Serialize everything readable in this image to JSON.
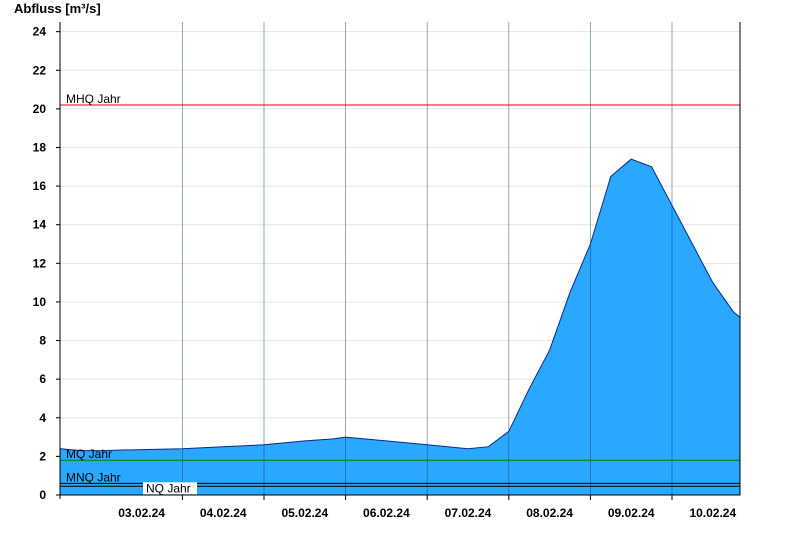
{
  "chart_data": {
    "type": "area",
    "title": "",
    "ylabel": "Abfluss [m³/s]",
    "xlabel": "",
    "ylim": [
      0,
      24.5
    ],
    "yticks": [
      0,
      2,
      4,
      6,
      8,
      10,
      12,
      14,
      16,
      18,
      20,
      22,
      24
    ],
    "xlim": [
      "2024-02-02T12:00",
      "2024-02-10T20:00"
    ],
    "day_labels": [
      {
        "date": "2024-02-03T12:00",
        "label": "03.02.24"
      },
      {
        "date": "2024-02-04T12:00",
        "label": "04.02.24"
      },
      {
        "date": "2024-02-05T12:00",
        "label": "05.02.24"
      },
      {
        "date": "2024-02-06T12:00",
        "label": "06.02.24"
      },
      {
        "date": "2024-02-07T12:00",
        "label": "07.02.24"
      },
      {
        "date": "2024-02-08T12:00",
        "label": "08.02.24"
      },
      {
        "date": "2024-02-09T12:00",
        "label": "09.02.24"
      },
      {
        "date": "2024-02-10T12:00",
        "label": "10.02.24"
      }
    ],
    "day_lines": [
      "2024-02-04T00:00",
      "2024-02-05T00:00",
      "2024-02-06T00:00",
      "2024-02-07T00:00",
      "2024-02-08T00:00",
      "2024-02-09T00:00",
      "2024-02-10T00:00"
    ],
    "grid": true,
    "reference_lines": [
      {
        "name": "MHQ Jahr",
        "value": 20.2,
        "color": "#e00000"
      },
      {
        "name": "MQ Jahr",
        "value": 1.8,
        "color": "#008000"
      },
      {
        "name": "MNQ Jahr",
        "value": 0.6,
        "color": "#000000"
      },
      {
        "name": "NQ Jahr",
        "value": 0.45,
        "color": "#000000"
      }
    ],
    "area_color": "#2aa8ff",
    "series": [
      {
        "x": [
          "2024-02-02T12:00",
          "2024-02-02T18:00",
          "2024-02-03T00:00",
          "2024-02-03T12:00",
          "2024-02-04T00:00",
          "2024-02-04T12:00",
          "2024-02-05T00:00",
          "2024-02-05T12:00",
          "2024-02-05T20:00",
          "2024-02-06T00:00",
          "2024-02-06T12:00",
          "2024-02-07T00:00",
          "2024-02-07T06:00",
          "2024-02-07T12:00",
          "2024-02-07T18:00",
          "2024-02-08T00:00",
          "2024-02-08T06:00",
          "2024-02-08T12:00",
          "2024-02-08T18:00",
          "2024-02-09T00:00",
          "2024-02-09T06:00",
          "2024-02-09T12:00",
          "2024-02-09T18:00",
          "2024-02-10T00:00",
          "2024-02-10T06:00",
          "2024-02-10T12:00",
          "2024-02-10T18:00",
          "2024-02-10T20:00"
        ],
        "y": [
          2.4,
          2.3,
          2.3,
          2.35,
          2.4,
          2.5,
          2.6,
          2.8,
          2.9,
          3.0,
          2.8,
          2.6,
          2.5,
          2.4,
          2.5,
          3.3,
          5.5,
          7.5,
          10.5,
          13.0,
          16.5,
          17.4,
          17.0,
          15.0,
          13.0,
          11.0,
          9.5,
          9.2
        ]
      }
    ]
  }
}
